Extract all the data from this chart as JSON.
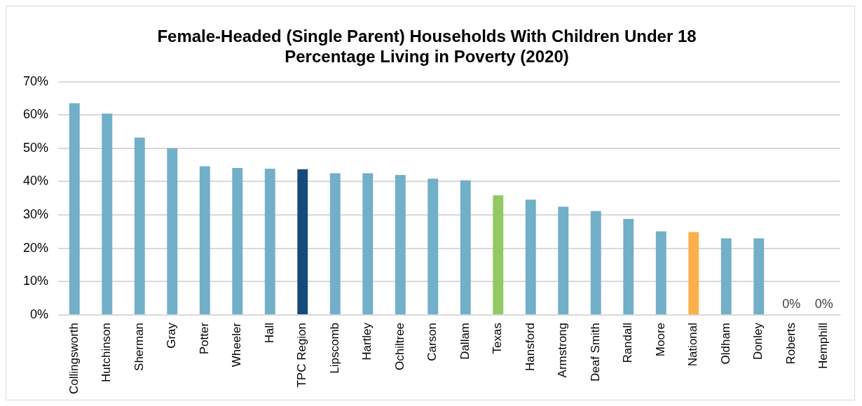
{
  "chart_data": {
    "type": "bar",
    "title": [
      "Female-Headed (Single Parent) Households With Children Under 18",
      "Percentage Living in Poverty (2020)"
    ],
    "categories": [
      "Collingsworth",
      "Hutchinson",
      "Sherman",
      "Gray",
      "Potter",
      "Wheeler",
      "Hall",
      "TPC Region",
      "Lipscomb",
      "Hartley",
      "Ochiltree",
      "Carson",
      "Dallam",
      "Texas",
      "Hansford",
      "Armstrong",
      "Deaf Smith",
      "Randall",
      "Moore",
      "National",
      "Oldham",
      "Donley",
      "Roberts",
      "Hemphill"
    ],
    "values": [
      63.5,
      60.4,
      53.2,
      50.0,
      44.6,
      44.1,
      43.9,
      43.7,
      42.5,
      42.5,
      42.0,
      40.9,
      40.4,
      35.9,
      34.6,
      32.5,
      31.2,
      28.8,
      25.1,
      24.9,
      23.0,
      23.0,
      0,
      0
    ],
    "colors": [
      "#72afc8",
      "#72afc8",
      "#72afc8",
      "#72afc8",
      "#72afc8",
      "#72afc8",
      "#72afc8",
      "#174a7c",
      "#72afc8",
      "#72afc8",
      "#72afc8",
      "#72afc8",
      "#72afc8",
      "#92c962",
      "#72afc8",
      "#72afc8",
      "#72afc8",
      "#72afc8",
      "#72afc8",
      "#fbb04b",
      "#72afc8",
      "#72afc8",
      "#72afc8",
      "#72afc8"
    ],
    "value_labels": [
      null,
      null,
      null,
      null,
      null,
      null,
      null,
      null,
      null,
      null,
      null,
      null,
      null,
      null,
      null,
      null,
      null,
      null,
      null,
      null,
      null,
      null,
      "0%",
      "0%"
    ],
    "ylim": [
      0,
      70
    ],
    "yticks": [
      {
        "value": 0,
        "label": "0%"
      },
      {
        "value": 10,
        "label": "10%"
      },
      {
        "value": 20,
        "label": "20%"
      },
      {
        "value": 30,
        "label": "30%"
      },
      {
        "value": 40,
        "label": "40%"
      },
      {
        "value": 50,
        "label": "50%"
      },
      {
        "value": 60,
        "label": "60%"
      },
      {
        "value": 70,
        "label": "70%"
      }
    ],
    "grid": "y",
    "legend": false
  }
}
